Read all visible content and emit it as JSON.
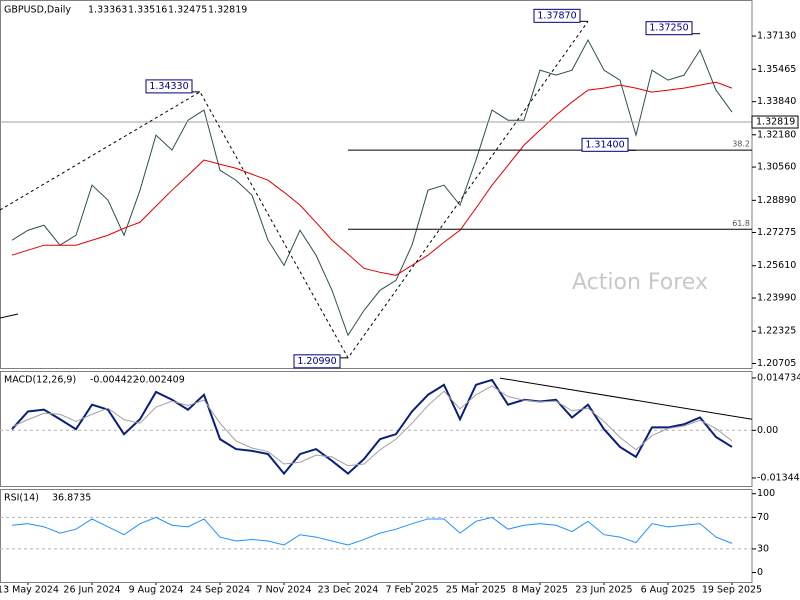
{
  "chart_data": [
    {
      "type": "line",
      "symbol": "GBPUSD,Daily",
      "ohlc": [
        1.33363,
        1.33516,
        1.32475,
        1.32819
      ],
      "watermark": "Action Forex",
      "x": [
        null,
        "13 May 2024",
        null,
        null,
        null,
        "26 Jun 2024",
        null,
        null,
        null,
        "9 Aug 2024",
        null,
        null,
        null,
        "24 Sep 2024",
        null,
        null,
        null,
        "7 Nov 2024",
        null,
        null,
        null,
        "23 Dec 2024",
        null,
        null,
        null,
        "7 Feb 2025",
        null,
        null,
        null,
        "25 Mar 2025",
        null,
        null,
        null,
        "8 May 2025",
        null,
        null,
        null,
        "23 Jun 2025",
        null,
        null,
        null,
        "6 Aug 2025",
        null,
        null,
        null,
        "19 Sep 2025"
      ],
      "ylim": [
        1.2048,
        1.3894
      ],
      "yticks": [
        {
          "value": 1.3713,
          "label": "1.37130"
        },
        {
          "value": 1.35465,
          "label": "1.35465"
        },
        {
          "value": 1.3384,
          "label": "1.33840"
        },
        {
          "value": 1.3218,
          "label": "1.32180"
        },
        {
          "value": 1.3056,
          "label": "1.30560"
        },
        {
          "value": 1.2889,
          "label": "1.28890"
        },
        {
          "value": 1.27275,
          "label": "1.27275"
        },
        {
          "value": 1.2561,
          "label": "1.25610"
        },
        {
          "value": 1.2399,
          "label": "1.23990"
        },
        {
          "value": 1.22325,
          "label": "1.22325"
        },
        {
          "value": 1.20705,
          "label": "1.20705"
        }
      ],
      "series": [
        {
          "name": "GBPUSD",
          "color": "#2f4f4f",
          "values": [
            1.2689,
            1.2739,
            1.2764,
            1.2664,
            1.2714,
            1.2965,
            1.289,
            1.2714,
            1.294,
            1.3216,
            1.3141,
            1.3291,
            1.3342,
            1.304,
            1.299,
            1.2915,
            1.2689,
            1.2563,
            1.2739,
            1.2614,
            1.2438,
            1.2212,
            1.2337,
            1.2438,
            1.2488,
            1.2664,
            1.294,
            1.2965,
            1.2865,
            1.3091,
            1.3342,
            1.3291,
            1.3291,
            1.3542,
            1.3517,
            1.3542,
            1.3693,
            1.3542,
            1.3492,
            1.3216,
            1.3542,
            1.3492,
            1.3517,
            1.3643,
            1.3442,
            1.3332
          ]
        },
        {
          "name": "MA",
          "color": "#e00000",
          "values": [
            1.2614,
            1.2639,
            1.2664,
            1.2664,
            1.2664,
            1.2689,
            1.2714,
            1.2749,
            1.2779,
            1.286,
            1.294,
            1.3015,
            1.3091,
            1.307,
            1.305,
            1.302,
            1.299,
            1.293,
            1.2865,
            1.2779,
            1.2689,
            1.2619,
            1.2548,
            1.2528,
            1.2513,
            1.2563,
            1.2614,
            1.2679,
            1.2739,
            1.285,
            1.2965,
            1.3065,
            1.3166,
            1.3241,
            1.3316,
            1.3382,
            1.3442,
            1.3452,
            1.3467,
            1.3452,
            1.3432,
            1.3442,
            1.3452,
            1.3467,
            1.3482,
            1.3452
          ]
        }
      ],
      "pivots": [
        {
          "value": 1.3433,
          "label": "1.34330"
        },
        {
          "value": 1.2099,
          "label": "1.20990"
        },
        {
          "value": 1.3787,
          "label": "1.37870"
        },
        {
          "value": 1.3725,
          "label": "1.37250"
        },
        {
          "value": 1.314,
          "label": "1.31400"
        }
      ],
      "fib_levels": [
        {
          "ratio": 38.2,
          "price": 1.3141
        },
        {
          "ratio": 61.8,
          "price": 1.2744
        }
      ]
    },
    {
      "type": "line",
      "name": "MACD(12,26,9)",
      "values": [
        -0.004422,
        -0.002409
      ],
      "ylim": [
        -0.0157,
        0.0167
      ],
      "yticks": [
        0.014734,
        {
          "value": 0,
          "label": "0.00"
        },
        -0.013442
      ],
      "levels": [
        0
      ],
      "trendline": [
        0.0147,
        0.0031
      ],
      "series": [
        {
          "name": "MACD",
          "color": "#0a1f7a",
          "values": [
            0.0003,
            0.0053,
            0.0058,
            0.0031,
            0.0003,
            0.0072,
            0.0058,
            -0.0011,
            0.0031,
            0.0108,
            0.0086,
            0.0058,
            0.01,
            -0.0025,
            -0.0053,
            -0.0058,
            -0.0067,
            -0.0122,
            -0.0067,
            -0.0053,
            -0.0086,
            -0.0122,
            -0.0081,
            -0.0025,
            -0.0011,
            0.0053,
            0.01,
            0.0128,
            0.0031,
            0.0128,
            0.0142,
            0.0072,
            0.0086,
            0.0081,
            0.0086,
            0.0036,
            0.0072,
            0.0003,
            -0.0047,
            -0.0075,
            0.0008,
            0.0008,
            0.0017,
            0.0036,
            -0.0019,
            -0.0047
          ]
        },
        {
          "name": "Signal",
          "color": "#a0a0a0",
          "values": [
            0.001,
            0.003,
            0.0048,
            0.0045,
            0.0025,
            0.0045,
            0.0062,
            0.003,
            0.002,
            0.0065,
            0.0082,
            0.007,
            0.0085,
            0.002,
            -0.003,
            -0.005,
            -0.006,
            -0.0095,
            -0.009,
            -0.007,
            -0.0075,
            -0.01,
            -0.0095,
            -0.0055,
            -0.0025,
            0.002,
            0.007,
            0.011,
            0.006,
            0.01,
            0.0125,
            0.0095,
            0.0085,
            0.008,
            0.0082,
            0.0055,
            0.0062,
            0.0025,
            -0.002,
            -0.0055,
            -0.0015,
            0.0005,
            0.0012,
            0.0028,
            0.0005,
            -0.003
          ]
        }
      ]
    },
    {
      "type": "line",
      "name": "RSI(14)",
      "values": [
        36.8735
      ],
      "ylim": [
        -12,
        106
      ],
      "yticks": [
        100,
        70,
        30,
        0
      ],
      "levels": [
        70,
        30
      ],
      "series": [
        {
          "name": "RSI",
          "color": "#1e90ff",
          "values": [
            60,
            62,
            58,
            50,
            55,
            68,
            58,
            48,
            62,
            70,
            60,
            58,
            68,
            45,
            40,
            42,
            40,
            35,
            48,
            45,
            40,
            35,
            42,
            50,
            55,
            62,
            68,
            68,
            50,
            65,
            70,
            55,
            60,
            62,
            60,
            52,
            65,
            48,
            45,
            38,
            62,
            58,
            60,
            62,
            45,
            37
          ]
        }
      ]
    }
  ]
}
